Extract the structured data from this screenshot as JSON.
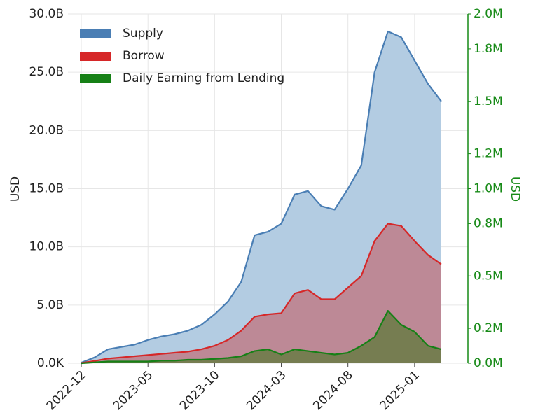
{
  "chart_data": {
    "type": "area",
    "x": [
      "2022-12",
      "2023-01",
      "2023-02",
      "2023-03",
      "2023-04",
      "2023-05",
      "2023-06",
      "2023-07",
      "2023-08",
      "2023-09",
      "2023-10",
      "2023-11",
      "2023-12",
      "2024-01",
      "2024-02",
      "2024-03",
      "2024-04",
      "2024-05",
      "2024-06",
      "2024-07",
      "2024-08",
      "2024-09",
      "2024-10",
      "2024-11",
      "2024-12",
      "2025-01",
      "2025-02",
      "2025-03"
    ],
    "xlim": [
      "2022-11",
      "2025-05"
    ],
    "xticks": [
      "2022-12",
      "2023-05",
      "2023-10",
      "2024-03",
      "2024-08",
      "2025-01"
    ],
    "ylabel": "USD",
    "y2label": "USD",
    "ylim": [
      0,
      30000000000
    ],
    "yticks": [
      {
        "value": 0,
        "label": "0.0K"
      },
      {
        "value": 5000000000,
        "label": "5.0B"
      },
      {
        "value": 10000000000,
        "label": "10.0B"
      },
      {
        "value": 15000000000,
        "label": "15.0B"
      },
      {
        "value": 20000000000,
        "label": "20.0B"
      },
      {
        "value": 25000000000,
        "label": "25.0B"
      },
      {
        "value": 30000000000,
        "label": "30.0B"
      }
    ],
    "y2lim": [
      0,
      2000000
    ],
    "y2ticks": [
      {
        "value": 0,
        "label": "0.0M"
      },
      {
        "value": 200000,
        "label": "0.2M"
      },
      {
        "value": 500000,
        "label": "0.5M"
      },
      {
        "value": 800000,
        "label": "0.8M"
      },
      {
        "value": 1000000,
        "label": "1.0M"
      },
      {
        "value": 1200000,
        "label": "1.2M"
      },
      {
        "value": 1500000,
        "label": "1.5M"
      },
      {
        "value": 1800000,
        "label": "1.8M"
      },
      {
        "value": 2000000,
        "label": "2.0M"
      }
    ],
    "y2_color": "#178a17",
    "grid": true,
    "legend": "upper left",
    "series": [
      {
        "name": "Supply",
        "color": "#4a7eb4",
        "fill": "#b3cce2",
        "values": [
          50000000,
          500000000,
          1200000000,
          1400000000,
          1600000000,
          2000000000,
          2300000000,
          2500000000,
          2800000000,
          3300000000,
          4200000000,
          5300000000,
          7000000000,
          11000000000,
          11300000000,
          12000000000,
          14500000000,
          14800000000,
          13500000000,
          13200000000,
          15000000000,
          17000000000,
          25000000000,
          28500000000,
          28000000000,
          26000000000,
          24000000000,
          22500000000
        ]
      },
      {
        "name": "Borrow",
        "color": "#d62728",
        "fill": "#c0737c",
        "values": [
          20000000,
          200000000,
          400000000,
          500000000,
          600000000,
          700000000,
          800000000,
          900000000,
          1000000000,
          1200000000,
          1500000000,
          2000000000,
          2800000000,
          4000000000,
          4200000000,
          4300000000,
          6000000000,
          6300000000,
          5500000000,
          5500000000,
          6500000000,
          7500000000,
          10500000000,
          12000000000,
          11800000000,
          10500000000,
          9300000000,
          8500000000
        ]
      },
      {
        "name": "Daily Earning from Lending",
        "color": "#168016",
        "fill": "#5f7a3a",
        "axis": "y2",
        "values": [
          0,
          5000,
          10000,
          10000,
          10000,
          10000,
          15000,
          15000,
          20000,
          20000,
          25000,
          30000,
          40000,
          70000,
          80000,
          50000,
          80000,
          70000,
          60000,
          50000,
          60000,
          100000,
          150000,
          300000,
          220000,
          180000,
          100000,
          80000
        ]
      }
    ]
  }
}
